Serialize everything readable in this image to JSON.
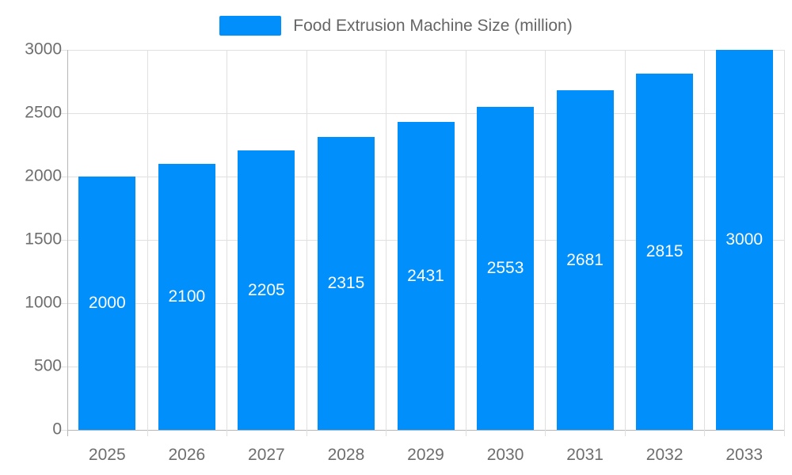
{
  "legend": {
    "label": "Food Extrusion Machine Size (million)"
  },
  "colors": {
    "bar": "#008FFB",
    "grid": "#e0e0e0",
    "axis_line": "#b6b6b6",
    "axis_text": "#6e6e6e",
    "legend_text": "#666666",
    "bar_label": "#ffffff",
    "background": "#ffffff"
  },
  "chart_data": {
    "type": "bar",
    "title": "Food Extrusion Machine Size (million)",
    "legend": [
      "Food Extrusion Machine Size (million)"
    ],
    "legend_position": "top",
    "categories": [
      "2025",
      "2026",
      "2027",
      "2028",
      "2029",
      "2030",
      "2031",
      "2032",
      "2033"
    ],
    "values": [
      2000,
      2100,
      2205,
      2315,
      2431,
      2553,
      2681,
      2815,
      3000
    ],
    "xlabel": "",
    "ylabel": "",
    "ylim": [
      0,
      3000
    ],
    "yticks": [
      0,
      500,
      1000,
      1500,
      2000,
      2500,
      3000
    ],
    "grid": true
  }
}
